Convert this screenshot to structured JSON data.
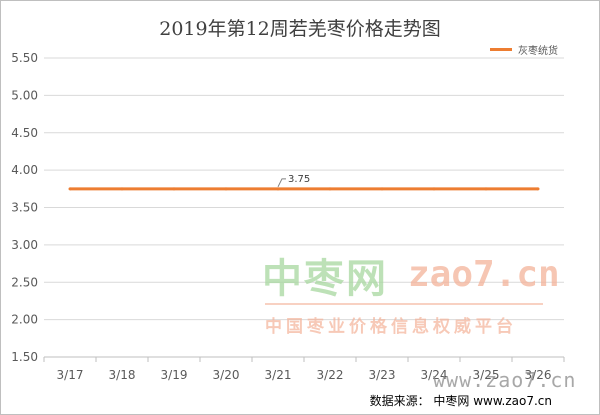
{
  "chart_data": {
    "type": "line",
    "title": "2019年第12周若羌枣价格走势图",
    "categories": [
      "3/17",
      "3/18",
      "3/19",
      "3/20",
      "3/21",
      "3/22",
      "3/23",
      "3/24",
      "3/25",
      "3/26"
    ],
    "series": [
      {
        "name": "灰枣统货",
        "values": [
          3.75,
          3.75,
          3.75,
          3.75,
          3.75,
          3.75,
          3.75,
          3.75,
          3.75,
          3.75
        ],
        "color": "#ed7d31"
      }
    ],
    "data_labels": [
      {
        "category": "3/21",
        "text": "3.75"
      }
    ],
    "y_ticks": [
      "1.50",
      "2.00",
      "2.50",
      "3.00",
      "3.50",
      "4.00",
      "4.50",
      "5.00",
      "5.50"
    ],
    "ylim": [
      1.5,
      5.5
    ],
    "grid": "horizontal",
    "legend_position": "top-right"
  },
  "watermark": {
    "brand_cn": "中枣网",
    "domain": "zao7.cn",
    "slogan": "中国枣业价格信息权威平台",
    "url": "www.zao7.cn"
  },
  "source_text": "数据来源：  中枣网 www.zao7.cn"
}
